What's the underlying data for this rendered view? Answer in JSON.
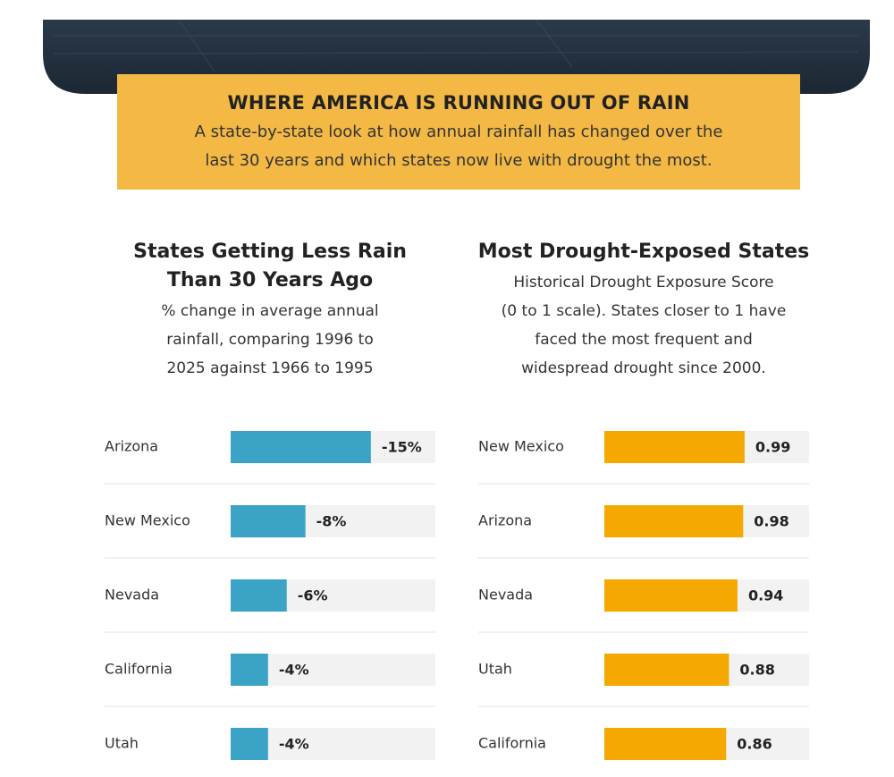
{
  "header": {
    "title": "WHERE AMERICA IS RUNNING OUT OF RAIN",
    "subtitle": [
      "A state-by-state look at how annual rainfall has changed over the",
      "last 30 years and which states now live with drought the most."
    ]
  },
  "chart_data": [
    {
      "type": "bar",
      "orientation": "horizontal",
      "title": [
        "States Getting Less Rain",
        "Than 30 Years Ago"
      ],
      "subtitle": [
        "% change in average annual",
        "rainfall, comparing 1996 to",
        "2025 against 1966 to 1995"
      ],
      "categories": [
        "Arizona",
        "New Mexico",
        "Nevada",
        "California",
        "Utah"
      ],
      "values": [
        -15,
        -8,
        -6,
        -4,
        -4
      ],
      "value_labels": [
        "-15%",
        "-8%",
        "-6%",
        "-4%",
        "-4%"
      ],
      "color": "#3ba3c5"
    },
    {
      "type": "bar",
      "orientation": "horizontal",
      "title": [
        "Most Drought-Exposed States"
      ],
      "subtitle": [
        "Historical Drought Exposure Score",
        "(0 to 1 scale). States closer to 1 have",
        "faced the most frequent and",
        "widespread drought since 2000."
      ],
      "categories": [
        "New Mexico",
        "Arizona",
        "Nevada",
        "Utah",
        "California"
      ],
      "values": [
        0.99,
        0.98,
        0.94,
        0.88,
        0.86
      ],
      "color": "#f5a800"
    }
  ]
}
